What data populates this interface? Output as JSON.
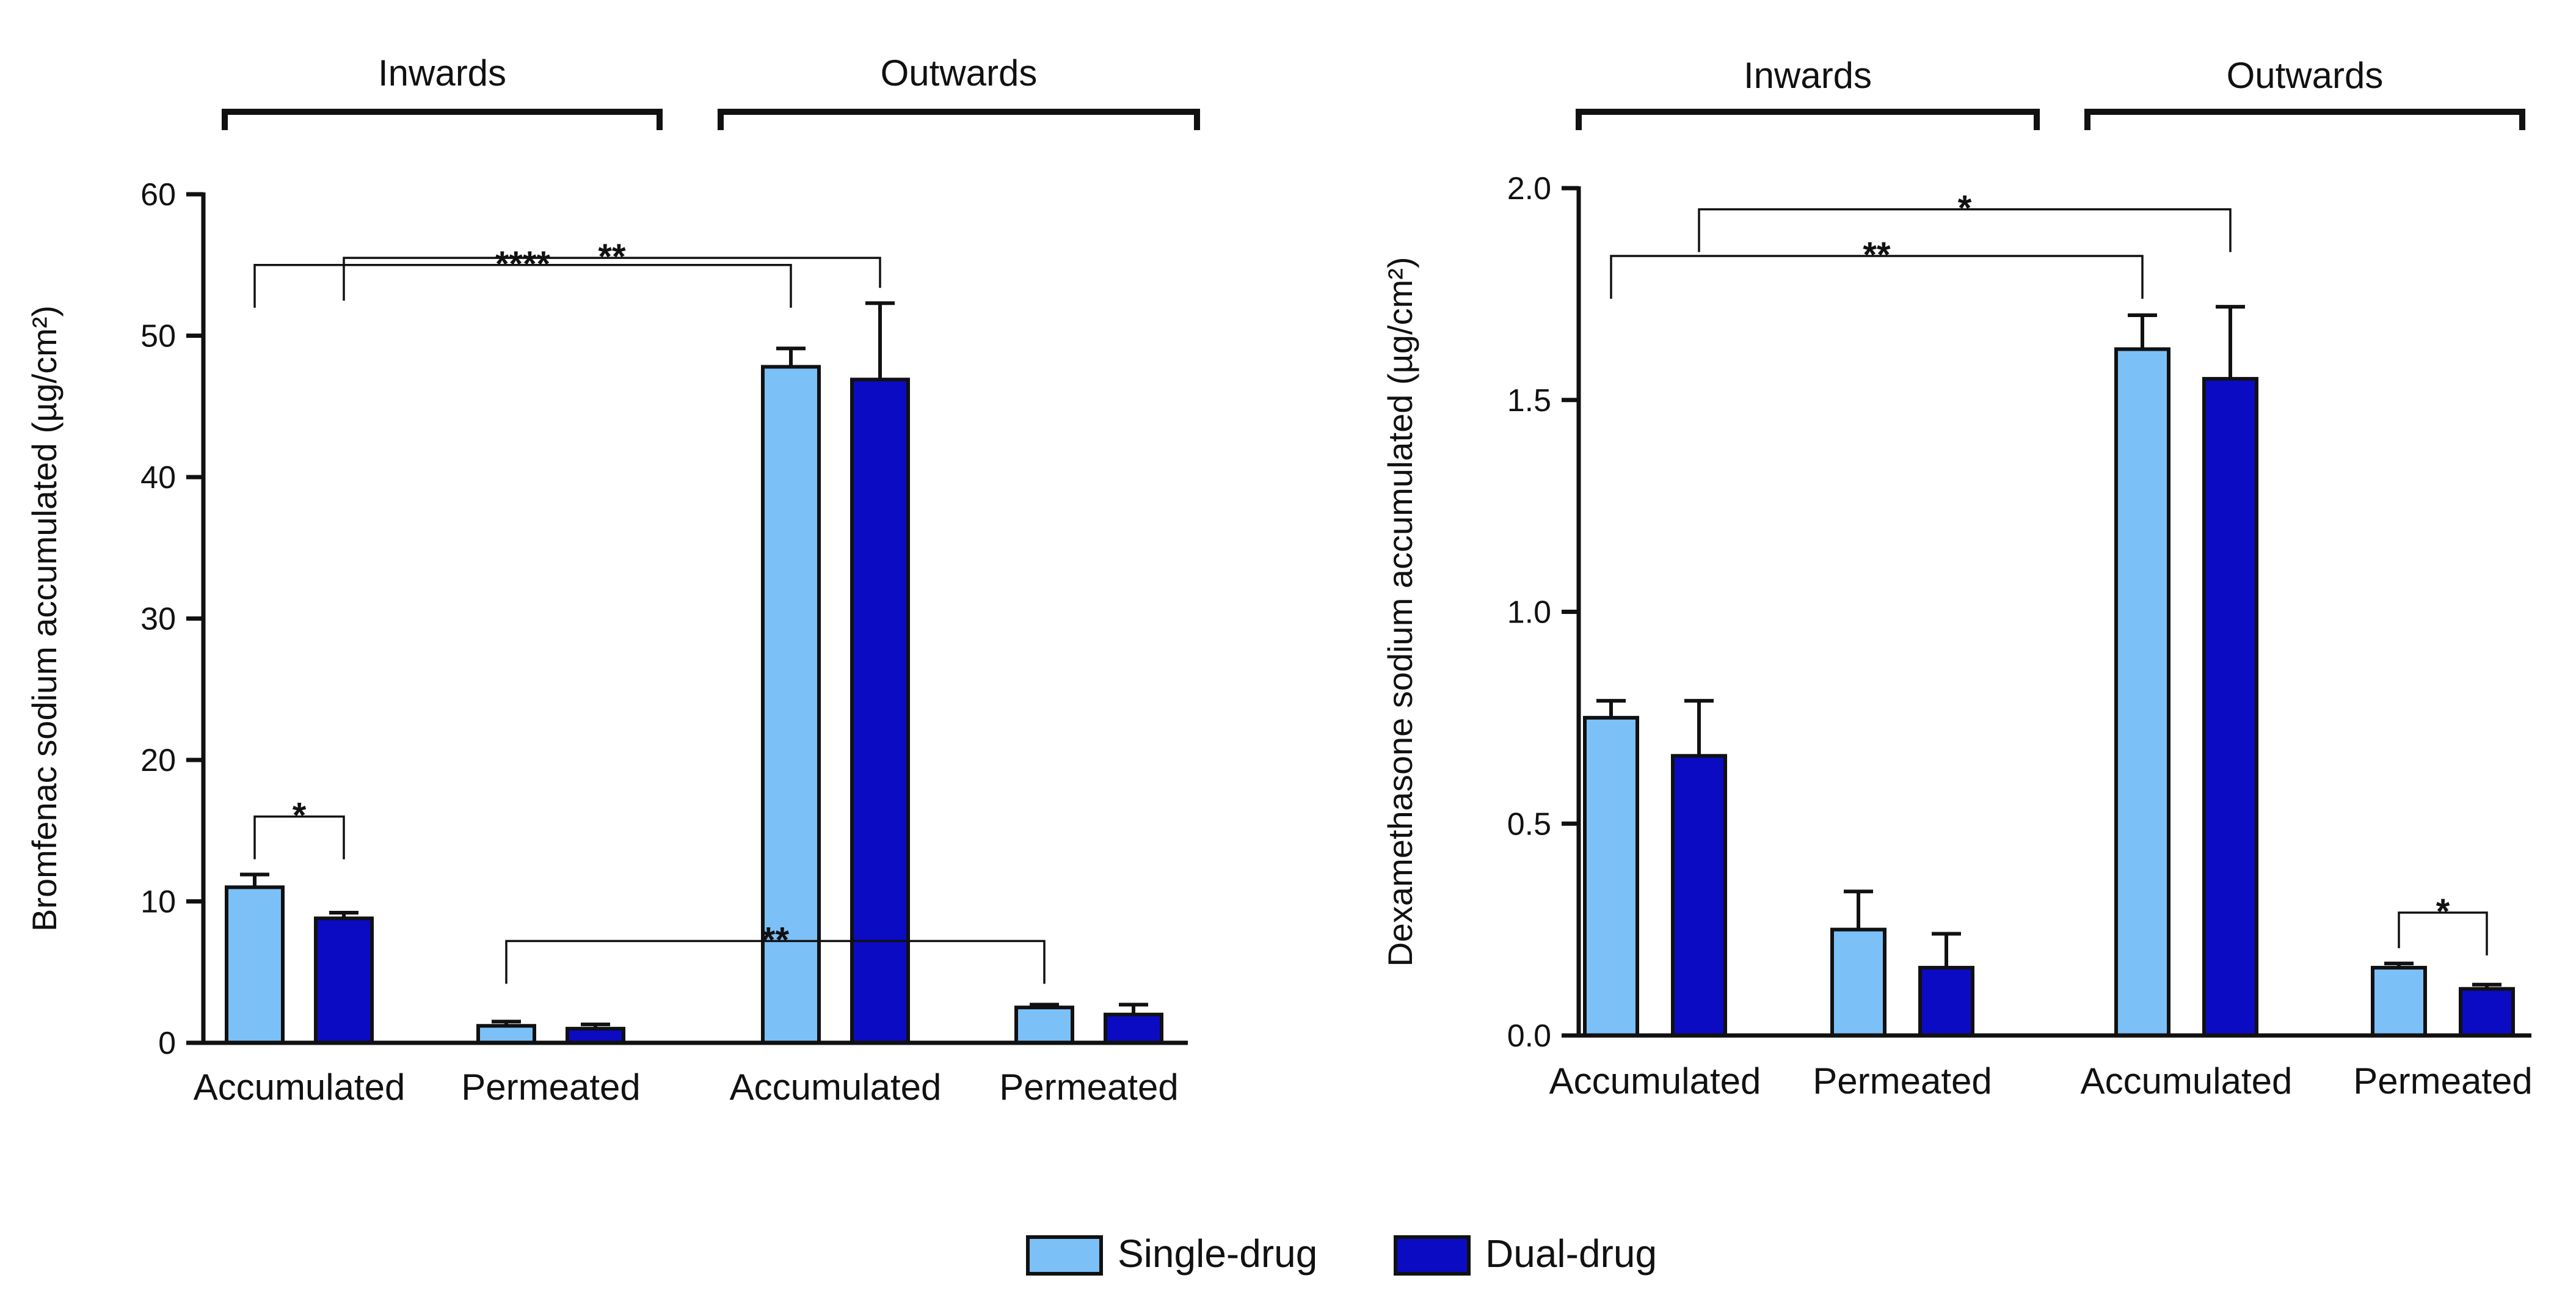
{
  "chart_data": [
    {
      "type": "bar",
      "ylabel": "Bromfenac sodium accumulated (µg/cm²)",
      "ylim": [
        0,
        60
      ],
      "yticks": [
        0,
        10,
        20,
        30,
        40,
        50,
        60
      ],
      "groups": [
        {
          "label": "Inwards",
          "categories": [
            0,
            1
          ]
        },
        {
          "label": "Outwards",
          "categories": [
            2,
            3
          ]
        }
      ],
      "categories": [
        "Accumulated",
        "Permeated",
        "Accumulated",
        "Permeated"
      ],
      "series": [
        {
          "name": "Single-drug",
          "values": [
            11.0,
            1.2,
            47.8,
            2.5
          ],
          "errors": [
            0.9,
            0.3,
            1.3,
            0.2
          ]
        },
        {
          "name": "Dual-drug",
          "values": [
            8.8,
            1.0,
            46.9,
            2.0
          ],
          "errors": [
            0.4,
            0.3,
            5.4,
            0.7
          ]
        }
      ],
      "significance": [
        {
          "label": "**",
          "from": {
            "category": 0,
            "series": 1
          },
          "to": {
            "category": 2,
            "series": 1
          },
          "level": 55.5
        },
        {
          "label": "****",
          "from": {
            "category": 0,
            "series": 0
          },
          "to": {
            "category": 2,
            "series": 0
          },
          "level": 55.0
        },
        {
          "label": "*",
          "from": {
            "category": 0,
            "series": 0
          },
          "to": {
            "category": 0,
            "series": 1
          },
          "level": 16.0
        },
        {
          "label": "**",
          "from": {
            "category": 1,
            "series": 0
          },
          "to": {
            "category": 3,
            "series": 0
          },
          "level": 7.2
        }
      ]
    },
    {
      "type": "bar",
      "ylabel": "Dexamethasone sodium accumulated (µg/cm²)",
      "ylim": [
        0,
        2.0
      ],
      "yticks": [
        0.0,
        0.5,
        1.0,
        1.5,
        2.0
      ],
      "groups": [
        {
          "label": "Inwards",
          "categories": [
            0,
            1
          ]
        },
        {
          "label": "Outwards",
          "categories": [
            2,
            3
          ]
        }
      ],
      "categories": [
        "Accumulated",
        "Permeated",
        "Accumulated",
        "Permeated"
      ],
      "series": [
        {
          "name": "Single-drug",
          "values": [
            0.75,
            0.25,
            1.62,
            0.16
          ],
          "errors": [
            0.04,
            0.09,
            0.08,
            0.01
          ]
        },
        {
          "name": "Dual-drug",
          "values": [
            0.66,
            0.16,
            1.55,
            0.11
          ],
          "errors": [
            0.13,
            0.08,
            0.17,
            0.01
          ]
        }
      ],
      "significance": [
        {
          "label": "*",
          "from": {
            "category": 0,
            "series": 1
          },
          "to": {
            "category": 2,
            "series": 1
          },
          "level": 1.95
        },
        {
          "label": "**",
          "from": {
            "category": 0,
            "series": 0
          },
          "to": {
            "category": 2,
            "series": 0
          },
          "level": 1.84
        },
        {
          "label": "*",
          "from": {
            "category": 3,
            "series": 0
          },
          "to": {
            "category": 3,
            "series": 1
          },
          "level": 0.29
        }
      ]
    }
  ],
  "legend": {
    "items": [
      {
        "label": "Single-drug",
        "color": "#7cc0f8"
      },
      {
        "label": "Dual-drug",
        "color": "#0b0bc4"
      }
    ]
  },
  "colors": {
    "single": "#7cc0f8",
    "dual": "#0b0bc4",
    "axis": "#111111"
  }
}
